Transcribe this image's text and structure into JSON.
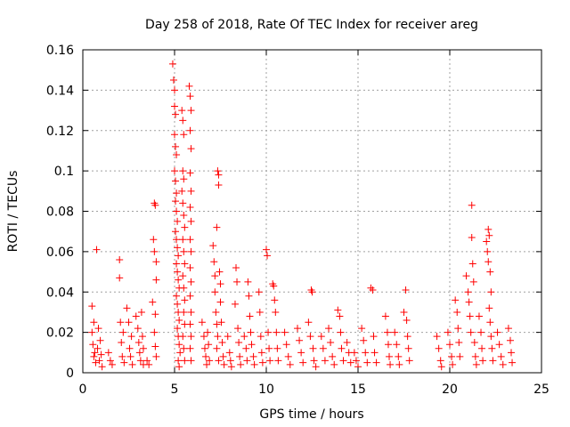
{
  "chart_data": {
    "type": "scatter",
    "title": "Day 258 of 2018, Rate Of TEC Index for receiver areg",
    "xlabel": "GPS time / hours",
    "ylabel": "ROTI / TECUs",
    "xlim": [
      0,
      25
    ],
    "ylim": [
      0,
      0.16
    ],
    "xticks": [
      0,
      5,
      10,
      15,
      20,
      25
    ],
    "xtick_labels": [
      "0",
      "5",
      "10",
      "15",
      "20",
      "25"
    ],
    "yticks": [
      0,
      0.02,
      0.04,
      0.06,
      0.08,
      0.1,
      0.12,
      0.14,
      0.16
    ],
    "ytick_labels": [
      "0",
      "0.02",
      "0.04",
      "0.06",
      "0.08",
      "0.1",
      "0.12",
      "0.14",
      "0.16"
    ],
    "grid": true,
    "marker": "plus",
    "color": "#ff0000",
    "series": [
      {
        "name": "ROTI",
        "points": [
          [
            0.5,
            0.033
          ],
          [
            0.5,
            0.02
          ],
          [
            0.55,
            0.014
          ],
          [
            0.6,
            0.008
          ],
          [
            0.6,
            0.025
          ],
          [
            0.65,
            0.01
          ],
          [
            0.7,
            0.005
          ],
          [
            0.75,
            0.061
          ],
          [
            0.8,
            0.012
          ],
          [
            0.85,
            0.022
          ],
          [
            0.9,
            0.006
          ],
          [
            0.95,
            0.016
          ],
          [
            1.0,
            0.009
          ],
          [
            1.05,
            0.003
          ],
          [
            1.4,
            0.01
          ],
          [
            1.5,
            0.006
          ],
          [
            1.6,
            0.004
          ],
          [
            2.0,
            0.056
          ],
          [
            2.0,
            0.047
          ],
          [
            2.05,
            0.025
          ],
          [
            2.1,
            0.015
          ],
          [
            2.15,
            0.008
          ],
          [
            2.2,
            0.02
          ],
          [
            2.25,
            0.005
          ],
          [
            2.4,
            0.032
          ],
          [
            2.5,
            0.025
          ],
          [
            2.55,
            0.012
          ],
          [
            2.6,
            0.008
          ],
          [
            2.65,
            0.018
          ],
          [
            2.7,
            0.004
          ],
          [
            2.9,
            0.028
          ],
          [
            3.0,
            0.022
          ],
          [
            3.05,
            0.015
          ],
          [
            3.1,
            0.01
          ],
          [
            3.15,
            0.006
          ],
          [
            3.2,
            0.03
          ],
          [
            3.25,
            0.018
          ],
          [
            3.3,
            0.012
          ],
          [
            3.3,
            0.004
          ],
          [
            3.5,
            0.006
          ],
          [
            3.6,
            0.004
          ],
          [
            3.8,
            0.035
          ],
          [
            3.85,
            0.066
          ],
          [
            3.9,
            0.084
          ],
          [
            3.9,
            0.06
          ],
          [
            3.95,
            0.083
          ],
          [
            4.0,
            0.055
          ],
          [
            4.0,
            0.046
          ],
          [
            3.95,
            0.029
          ],
          [
            3.9,
            0.02
          ],
          [
            3.95,
            0.013
          ],
          [
            4.0,
            0.008
          ],
          [
            4.9,
            0.153
          ],
          [
            4.95,
            0.145
          ],
          [
            5.0,
            0.14
          ],
          [
            5.0,
            0.132
          ],
          [
            5.05,
            0.128
          ],
          [
            5.0,
            0.118
          ],
          [
            5.05,
            0.112
          ],
          [
            5.1,
            0.108
          ],
          [
            5.0,
            0.1
          ],
          [
            5.05,
            0.095
          ],
          [
            5.1,
            0.089
          ],
          [
            5.05,
            0.085
          ],
          [
            5.1,
            0.08
          ],
          [
            5.15,
            0.075
          ],
          [
            5.05,
            0.07
          ],
          [
            5.1,
            0.066
          ],
          [
            5.15,
            0.062
          ],
          [
            5.2,
            0.058
          ],
          [
            5.1,
            0.054
          ],
          [
            5.15,
            0.05
          ],
          [
            5.2,
            0.046
          ],
          [
            5.25,
            0.042
          ],
          [
            5.1,
            0.038
          ],
          [
            5.15,
            0.034
          ],
          [
            5.2,
            0.03
          ],
          [
            5.25,
            0.026
          ],
          [
            5.15,
            0.022
          ],
          [
            5.2,
            0.018
          ],
          [
            5.25,
            0.014
          ],
          [
            5.3,
            0.01
          ],
          [
            5.2,
            0.006
          ],
          [
            5.25,
            0.003
          ],
          [
            5.4,
            0.13
          ],
          [
            5.45,
            0.125
          ],
          [
            5.5,
            0.118
          ],
          [
            5.45,
            0.1
          ],
          [
            5.5,
            0.096
          ],
          [
            5.4,
            0.09
          ],
          [
            5.45,
            0.084
          ],
          [
            5.5,
            0.078
          ],
          [
            5.55,
            0.072
          ],
          [
            5.45,
            0.066
          ],
          [
            5.5,
            0.06
          ],
          [
            5.55,
            0.054
          ],
          [
            5.45,
            0.048
          ],
          [
            5.5,
            0.042
          ],
          [
            5.55,
            0.036
          ],
          [
            5.5,
            0.03
          ],
          [
            5.55,
            0.024
          ],
          [
            5.45,
            0.018
          ],
          [
            5.5,
            0.012
          ],
          [
            5.55,
            0.006
          ],
          [
            5.8,
            0.142
          ],
          [
            5.85,
            0.137
          ],
          [
            5.9,
            0.13
          ],
          [
            5.85,
            0.12
          ],
          [
            5.9,
            0.111
          ],
          [
            5.85,
            0.099
          ],
          [
            5.9,
            0.09
          ],
          [
            5.85,
            0.082
          ],
          [
            5.9,
            0.075
          ],
          [
            5.85,
            0.066
          ],
          [
            5.9,
            0.06
          ],
          [
            5.85,
            0.052
          ],
          [
            5.9,
            0.045
          ],
          [
            5.85,
            0.038
          ],
          [
            5.9,
            0.03
          ],
          [
            5.85,
            0.024
          ],
          [
            5.9,
            0.018
          ],
          [
            5.85,
            0.012
          ],
          [
            5.9,
            0.006
          ],
          [
            6.5,
            0.025
          ],
          [
            6.6,
            0.018
          ],
          [
            6.65,
            0.012
          ],
          [
            6.7,
            0.008
          ],
          [
            6.75,
            0.004
          ],
          [
            6.8,
            0.02
          ],
          [
            6.85,
            0.014
          ],
          [
            6.9,
            0.006
          ],
          [
            7.1,
            0.063
          ],
          [
            7.15,
            0.055
          ],
          [
            7.2,
            0.048
          ],
          [
            7.2,
            0.04
          ],
          [
            7.25,
            0.03
          ],
          [
            7.3,
            0.024
          ],
          [
            7.35,
            0.018
          ],
          [
            7.3,
            0.012
          ],
          [
            7.4,
            0.006
          ],
          [
            7.35,
            0.1
          ],
          [
            7.4,
            0.098
          ],
          [
            7.4,
            0.093
          ],
          [
            7.3,
            0.072
          ],
          [
            7.45,
            0.05
          ],
          [
            7.5,
            0.044
          ],
          [
            7.5,
            0.035
          ],
          [
            7.55,
            0.025
          ],
          [
            7.6,
            0.015
          ],
          [
            7.65,
            0.008
          ],
          [
            7.7,
            0.004
          ],
          [
            7.9,
            0.018
          ],
          [
            8.0,
            0.01
          ],
          [
            8.05,
            0.006
          ],
          [
            8.1,
            0.003
          ],
          [
            8.3,
            0.034
          ],
          [
            8.35,
            0.052
          ],
          [
            8.4,
            0.045
          ],
          [
            8.45,
            0.022
          ],
          [
            8.5,
            0.015
          ],
          [
            8.55,
            0.008
          ],
          [
            8.6,
            0.004
          ],
          [
            8.8,
            0.018
          ],
          [
            8.9,
            0.012
          ],
          [
            8.95,
            0.006
          ],
          [
            9.0,
            0.045
          ],
          [
            9.05,
            0.038
          ],
          [
            9.1,
            0.028
          ],
          [
            9.15,
            0.02
          ],
          [
            9.2,
            0.014
          ],
          [
            9.3,
            0.008
          ],
          [
            9.35,
            0.004
          ],
          [
            9.6,
            0.04
          ],
          [
            9.65,
            0.03
          ],
          [
            9.7,
            0.018
          ],
          [
            9.75,
            0.01
          ],
          [
            9.8,
            0.005
          ],
          [
            10.0,
            0.061
          ],
          [
            10.05,
            0.058
          ],
          [
            10.1,
            0.02
          ],
          [
            10.15,
            0.012
          ],
          [
            10.2,
            0.006
          ],
          [
            10.35,
            0.044
          ],
          [
            10.4,
            0.043
          ],
          [
            10.45,
            0.036
          ],
          [
            10.5,
            0.03
          ],
          [
            10.55,
            0.02
          ],
          [
            10.6,
            0.012
          ],
          [
            10.65,
            0.006
          ],
          [
            11.0,
            0.02
          ],
          [
            11.1,
            0.014
          ],
          [
            11.2,
            0.008
          ],
          [
            11.3,
            0.004
          ],
          [
            11.7,
            0.022
          ],
          [
            11.8,
            0.016
          ],
          [
            11.9,
            0.01
          ],
          [
            12.0,
            0.005
          ],
          [
            12.3,
            0.025
          ],
          [
            12.4,
            0.018
          ],
          [
            12.45,
            0.041
          ],
          [
            12.5,
            0.04
          ],
          [
            12.55,
            0.012
          ],
          [
            12.6,
            0.006
          ],
          [
            12.7,
            0.003
          ],
          [
            13.0,
            0.018
          ],
          [
            13.1,
            0.012
          ],
          [
            13.2,
            0.006
          ],
          [
            13.4,
            0.022
          ],
          [
            13.5,
            0.015
          ],
          [
            13.6,
            0.008
          ],
          [
            13.7,
            0.004
          ],
          [
            13.9,
            0.031
          ],
          [
            14.0,
            0.028
          ],
          [
            14.05,
            0.02
          ],
          [
            14.1,
            0.012
          ],
          [
            14.2,
            0.006
          ],
          [
            14.4,
            0.015
          ],
          [
            14.5,
            0.01
          ],
          [
            14.6,
            0.005
          ],
          [
            14.8,
            0.01
          ],
          [
            14.9,
            0.006
          ],
          [
            15.0,
            0.003
          ],
          [
            15.2,
            0.022
          ],
          [
            15.3,
            0.016
          ],
          [
            15.4,
            0.01
          ],
          [
            15.5,
            0.005
          ],
          [
            15.7,
            0.042
          ],
          [
            15.8,
            0.041
          ],
          [
            15.85,
            0.018
          ],
          [
            15.9,
            0.01
          ],
          [
            16.0,
            0.005
          ],
          [
            16.5,
            0.028
          ],
          [
            16.6,
            0.02
          ],
          [
            16.65,
            0.014
          ],
          [
            16.7,
            0.008
          ],
          [
            16.75,
            0.004
          ],
          [
            17.0,
            0.02
          ],
          [
            17.1,
            0.014
          ],
          [
            17.2,
            0.008
          ],
          [
            17.25,
            0.004
          ],
          [
            17.5,
            0.03
          ],
          [
            17.6,
            0.041
          ],
          [
            17.65,
            0.026
          ],
          [
            17.7,
            0.018
          ],
          [
            17.75,
            0.012
          ],
          [
            17.8,
            0.006
          ],
          [
            19.3,
            0.018
          ],
          [
            19.4,
            0.012
          ],
          [
            19.5,
            0.006
          ],
          [
            19.55,
            0.003
          ],
          [
            19.9,
            0.02
          ],
          [
            20.0,
            0.014
          ],
          [
            20.1,
            0.008
          ],
          [
            20.15,
            0.004
          ],
          [
            20.3,
            0.036
          ],
          [
            20.4,
            0.03
          ],
          [
            20.45,
            0.022
          ],
          [
            20.5,
            0.015
          ],
          [
            20.55,
            0.008
          ],
          [
            20.9,
            0.048
          ],
          [
            21.0,
            0.04
          ],
          [
            21.05,
            0.035
          ],
          [
            21.1,
            0.028
          ],
          [
            21.15,
            0.02
          ],
          [
            21.2,
            0.083
          ],
          [
            21.2,
            0.067
          ],
          [
            21.25,
            0.054
          ],
          [
            21.3,
            0.045
          ],
          [
            21.35,
            0.015
          ],
          [
            21.4,
            0.008
          ],
          [
            21.45,
            0.004
          ],
          [
            21.6,
            0.028
          ],
          [
            21.7,
            0.02
          ],
          [
            21.75,
            0.012
          ],
          [
            21.8,
            0.006
          ],
          [
            22.0,
            0.065
          ],
          [
            22.05,
            0.06
          ],
          [
            22.1,
            0.055
          ],
          [
            22.1,
            0.071
          ],
          [
            22.15,
            0.068
          ],
          [
            22.2,
            0.05
          ],
          [
            22.25,
            0.04
          ],
          [
            22.15,
            0.032
          ],
          [
            22.2,
            0.025
          ],
          [
            22.25,
            0.018
          ],
          [
            22.3,
            0.012
          ],
          [
            22.35,
            0.006
          ],
          [
            22.6,
            0.02
          ],
          [
            22.7,
            0.014
          ],
          [
            22.8,
            0.008
          ],
          [
            22.9,
            0.004
          ],
          [
            23.2,
            0.022
          ],
          [
            23.3,
            0.016
          ],
          [
            23.35,
            0.01
          ],
          [
            23.4,
            0.005
          ]
        ]
      }
    ]
  }
}
